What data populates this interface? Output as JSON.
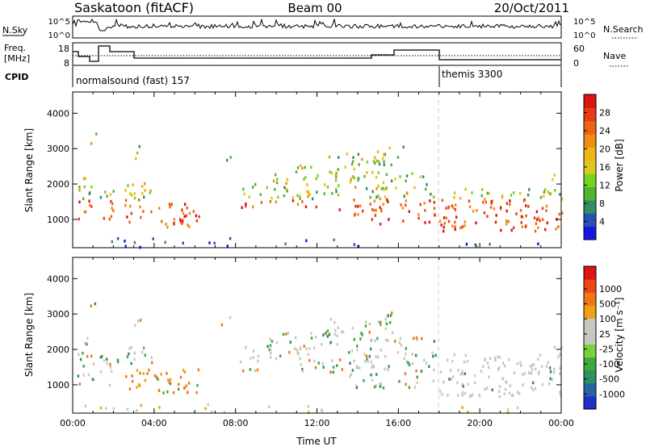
{
  "header": {
    "station": "Saskatoon (fitACF)",
    "beam": "Beam 00",
    "date": "20/Oct/2011"
  },
  "status_panels": {
    "nsky_label": "N.Sky",
    "nsky_ticks": [
      "10^5",
      "10^0"
    ],
    "nsearch_label": "N.Search",
    "nsearch_ticks": [
      "10^5",
      "10^0"
    ],
    "freq_label_1": "Freq.",
    "freq_label_2": "[MHz]",
    "freq_ticks": [
      "18",
      "8"
    ],
    "nave_label": "Nave",
    "nave_ticks": [
      "60",
      "0"
    ],
    "cpid_label": "CPID",
    "cpid_segments": [
      {
        "name": "normalsound (fast) 157",
        "start_hour": 0,
        "end_hour": 18
      },
      {
        "name": "themis 3300",
        "start_hour": 18,
        "end_hour": 24
      }
    ]
  },
  "chart_data": [
    {
      "type": "heatmap",
      "name": "power",
      "xlabel": "",
      "ylabel": "Slant Range [km]",
      "xlim": [
        0,
        24
      ],
      "ylim": [
        200,
        4600
      ],
      "yticks": [
        "1000",
        "2000",
        "3000",
        "4000"
      ],
      "colorbar": {
        "title": "Power [dB]",
        "ticks": [
          "4",
          "8",
          "12",
          "16",
          "20",
          "24",
          "28"
        ],
        "colors": [
          "#1414e6",
          "#2850b4",
          "#328c64",
          "#50b432",
          "#78d21e",
          "#dcc81e",
          "#f0b414",
          "#f08c14",
          "#eb6414",
          "#e63c14",
          "#dc1414"
        ]
      }
    },
    {
      "type": "heatmap",
      "name": "velocity",
      "xlabel": "Time UT",
      "ylabel": "Slant Range [km]",
      "xlim": [
        0,
        24
      ],
      "ylim": [
        200,
        4600
      ],
      "xticks": [
        "00:00",
        "04:00",
        "08:00",
        "12:00",
        "16:00",
        "20:00",
        "00:00"
      ],
      "yticks": [
        "1000",
        "2000",
        "3000",
        "4000"
      ],
      "colorbar": {
        "title": "Velocity [m s⁻¹]",
        "ticks": [
          "1000",
          "500",
          "100",
          "25",
          "-25",
          "-100",
          "-500",
          "-1000"
        ],
        "colors": [
          "#1e32c8",
          "#2864a0",
          "#328c64",
          "#3caa3c",
          "#78d23c",
          "#c8c8c0",
          "#c8c8c0",
          "#f0a014",
          "#f07814",
          "#eb4614",
          "#dc1414"
        ]
      }
    }
  ]
}
